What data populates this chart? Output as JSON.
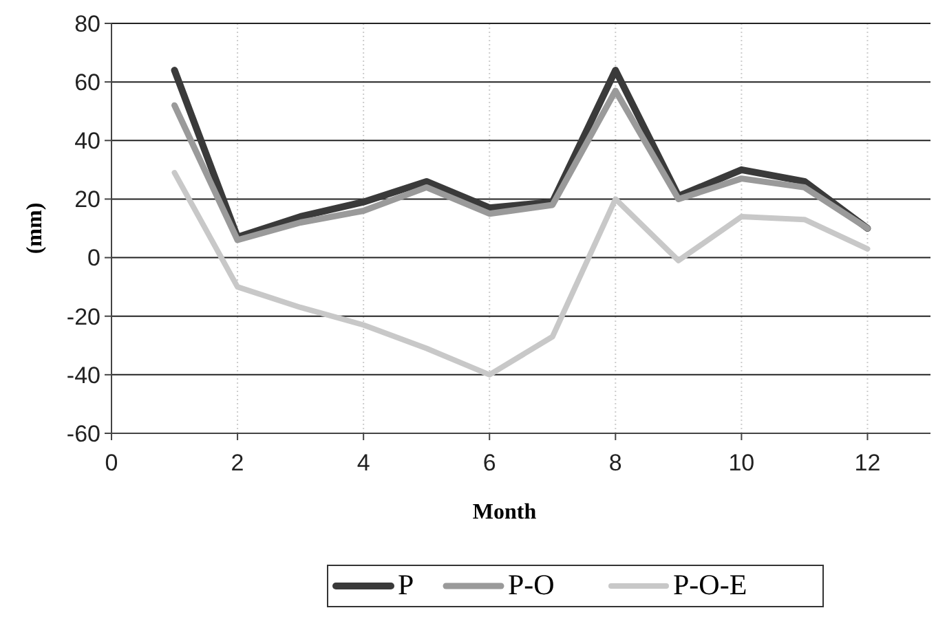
{
  "chart_data": {
    "type": "line",
    "xlabel": "Month",
    "ylabel": "(mm)",
    "x": [
      1,
      2,
      3,
      4,
      5,
      6,
      7,
      8,
      9,
      10,
      11,
      12
    ],
    "series": [
      {
        "name": "P",
        "color": "#3a3a3a",
        "values": [
          64,
          7,
          14,
          19,
          26,
          17,
          19,
          64,
          21,
          30,
          26,
          10
        ]
      },
      {
        "name": "P-O",
        "color": "#9a9a9a",
        "values": [
          52,
          6,
          12,
          16,
          24,
          15,
          18,
          57,
          20,
          27,
          24,
          10
        ]
      },
      {
        "name": "P-O-E",
        "color": "#c8c8c8",
        "values": [
          29,
          -10,
          -17,
          -23,
          -31,
          -40,
          -27,
          20,
          -1,
          14,
          13,
          3
        ]
      }
    ],
    "xlim": [
      0,
      13
    ],
    "xticks": [
      0,
      2,
      4,
      6,
      8,
      10,
      12
    ],
    "ylim": [
      -60,
      80
    ],
    "yticks": [
      -60,
      -40,
      -20,
      0,
      20,
      40,
      60,
      80
    ],
    "grid": true,
    "legend": "bottom",
    "marker": "none",
    "line_style": "solid"
  }
}
